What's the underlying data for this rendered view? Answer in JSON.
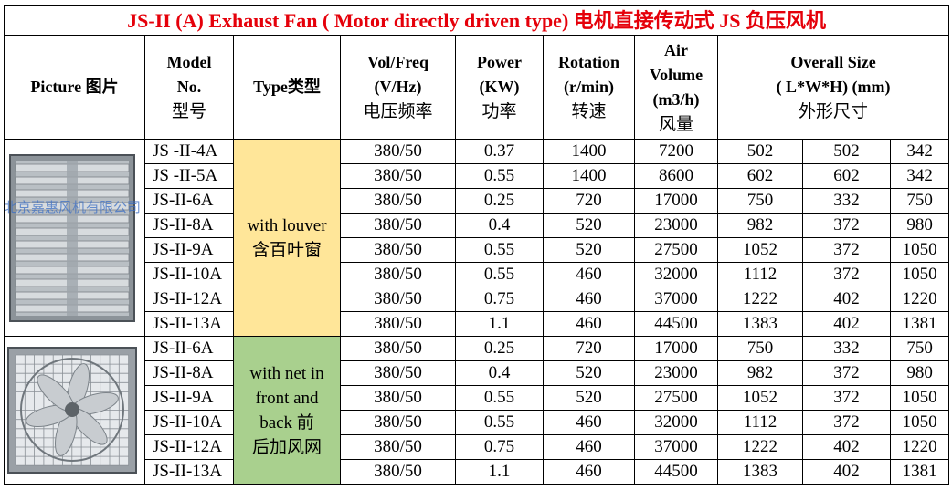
{
  "title": "JS-II (A) Exhaust Fan ( Motor directly driven type) 电机直接传动式 JS 负压风机",
  "headers": {
    "picture": "Picture 图片",
    "model": [
      "Model",
      "No.",
      "型号"
    ],
    "type": "Type类型",
    "volfreq": [
      "Vol/Freq",
      "(V/Hz)",
      "电压频率"
    ],
    "power": [
      "Power",
      "(KW)",
      "功率"
    ],
    "rotation": [
      "Rotation",
      "(r/min)",
      "转速"
    ],
    "air": [
      "Air",
      "Volume",
      "(m3/h)",
      "风量"
    ],
    "size": [
      "Overall Size",
      "( L*W*H) (mm)",
      "外形尺寸"
    ]
  },
  "group1": {
    "type_label": [
      "with louver",
      "含百叶窗"
    ],
    "image": "louver-exhaust-fan-photo",
    "image_watermark": "北京嘉惠风机有限公司",
    "color": "#ffe699",
    "rows": [
      [
        "JS -II-4A",
        "380/50",
        "0.37",
        "1400",
        "7200",
        "502",
        "502",
        "342"
      ],
      [
        "JS -II-5A",
        "380/50",
        "0.55",
        "1400",
        "8600",
        "602",
        "602",
        "342"
      ],
      [
        "JS-II-6A",
        "380/50",
        "0.25",
        "720",
        "17000",
        "750",
        "332",
        "750"
      ],
      [
        "JS-II-8A",
        "380/50",
        "0.4",
        "520",
        "23000",
        "982",
        "372",
        "980"
      ],
      [
        "JS-II-9A",
        "380/50",
        "0.55",
        "520",
        "27500",
        "1052",
        "372",
        "1050"
      ],
      [
        "JS-II-10A",
        "380/50",
        "0.55",
        "460",
        "32000",
        "1112",
        "372",
        "1050"
      ],
      [
        "JS-II-12A",
        "380/50",
        "0.75",
        "460",
        "37000",
        "1222",
        "402",
        "1220"
      ],
      [
        "JS-II-13A",
        "380/50",
        "1.1",
        "460",
        "44500",
        "1383",
        "402",
        "1381"
      ]
    ]
  },
  "group2": {
    "type_label": [
      "with net in",
      "front and",
      "back 前",
      "后加风网"
    ],
    "image": "net-exhaust-fan-photo",
    "color": "#a9d08e",
    "rows": [
      [
        "JS-II-6A",
        "380/50",
        "0.25",
        "720",
        "17000",
        "750",
        "332",
        "750"
      ],
      [
        "JS-II-8A",
        "380/50",
        "0.4",
        "520",
        "23000",
        "982",
        "372",
        "980"
      ],
      [
        "JS-II-9A",
        "380/50",
        "0.55",
        "520",
        "27500",
        "1052",
        "372",
        "1050"
      ],
      [
        "JS-II-10A",
        "380/50",
        "0.55",
        "460",
        "32000",
        "1112",
        "372",
        "1050"
      ],
      [
        "JS-II-12A",
        "380/50",
        "0.75",
        "460",
        "37000",
        "1222",
        "402",
        "1220"
      ],
      [
        "JS-II-13A",
        "380/50",
        "1.1",
        "460",
        "44500",
        "1383",
        "402",
        "1381"
      ]
    ]
  },
  "colors": {
    "title": "#e5000a",
    "louver_bg": "#ffe699",
    "net_bg": "#a9d08e"
  }
}
